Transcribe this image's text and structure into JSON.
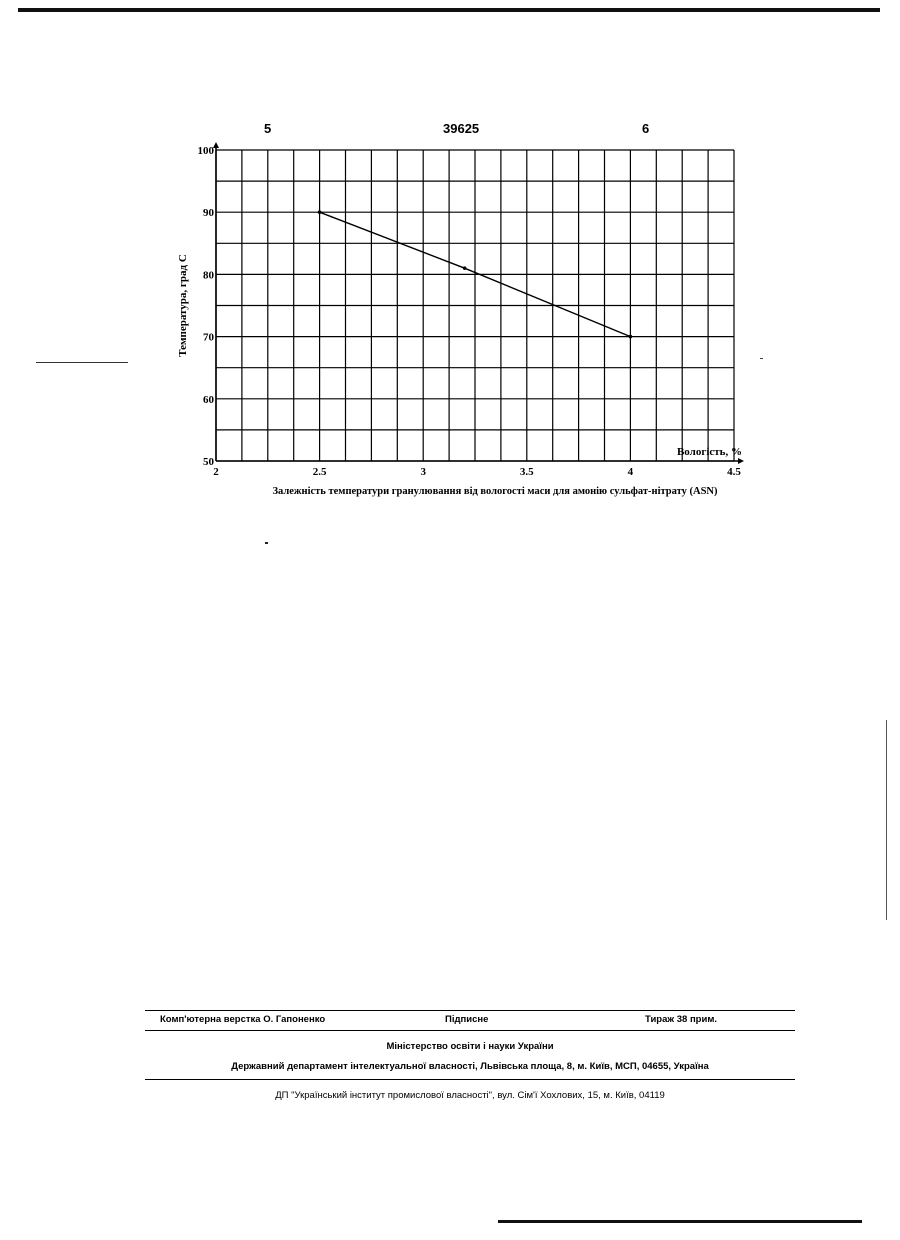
{
  "page": {
    "header_left": "5",
    "header_center": "39625",
    "header_right": "6"
  },
  "chart_data": {
    "type": "line",
    "title": "",
    "caption": "Залежність температури гранулювання від вологості маси для амонію сульфат-нітрату (ASN)",
    "xlabel": "Вологість, %",
    "ylabel": "Температура, град C",
    "xlim": [
      2,
      4.5
    ],
    "ylim": [
      50,
      100
    ],
    "x_ticks": [
      "2",
      "2.5",
      "3",
      "3.5",
      "4",
      "4.5"
    ],
    "y_ticks": [
      "50",
      "60",
      "70",
      "80",
      "90",
      "100"
    ],
    "grid": true,
    "series": [
      {
        "x": [
          2.5,
          3.2,
          4
        ],
        "y": [
          90,
          81,
          70
        ]
      }
    ],
    "line_color": "#000000"
  },
  "imprint": {
    "layout": "Комп'ютерна верстка О. Гапоненко",
    "signed": "Підписне",
    "circulation": "Тираж 38 прим.",
    "ministry": "Міністерство освіти і науки України",
    "department": "Державний департамент інтелектуальної власності, Львівська площа, 8, м. Київ, МСП, 04655, Україна",
    "institute": "ДП \"Український інститут промислової власності\", вул. Сім'ї Хохлових, 15, м. Київ, 04119"
  }
}
